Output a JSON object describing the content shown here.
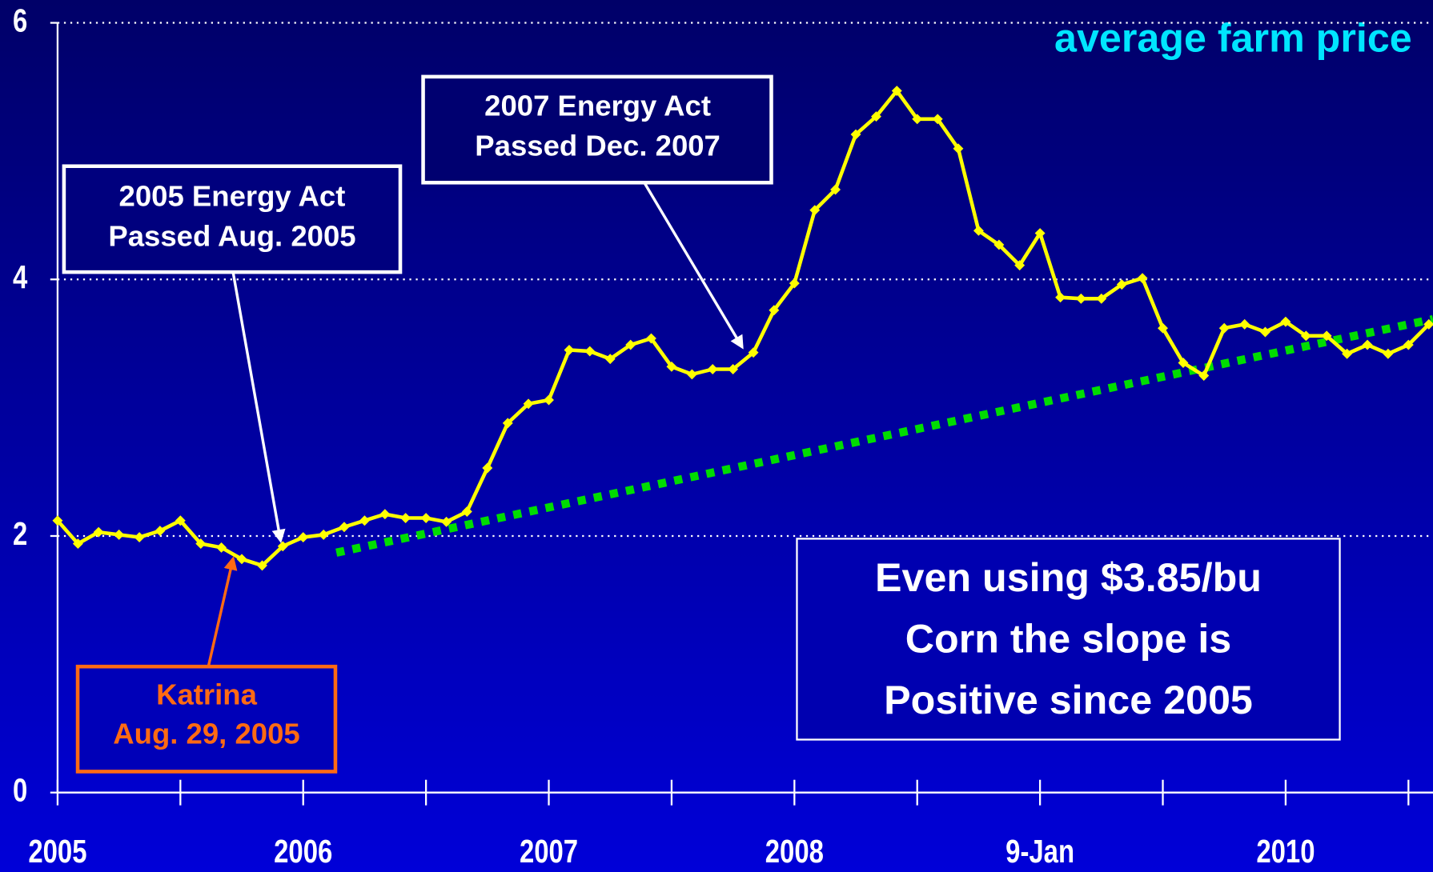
{
  "chart_data": {
    "type": "line",
    "title": "average farm price",
    "x": [
      2005.0,
      2005.083,
      2005.167,
      2005.25,
      2005.333,
      2005.417,
      2005.5,
      2005.583,
      2005.667,
      2005.75,
      2005.833,
      2005.917,
      2006.0,
      2006.083,
      2006.167,
      2006.25,
      2006.333,
      2006.417,
      2006.5,
      2006.583,
      2006.667,
      2006.75,
      2006.833,
      2006.917,
      2007.0,
      2007.083,
      2007.167,
      2007.25,
      2007.333,
      2007.417,
      2007.5,
      2007.583,
      2007.667,
      2007.75,
      2007.833,
      2007.917,
      2008.0,
      2008.083,
      2008.167,
      2008.25,
      2008.333,
      2008.417,
      2008.5,
      2008.583,
      2008.667,
      2008.75,
      2008.833,
      2008.917,
      2009.0,
      2009.083,
      2009.167,
      2009.25,
      2009.333,
      2009.417,
      2009.5,
      2009.583,
      2009.667,
      2009.75,
      2009.833,
      2009.917,
      2010.0,
      2010.083,
      2010.167,
      2010.25,
      2010.333,
      2010.417,
      2010.5,
      2010.583
    ],
    "series": [
      {
        "color": "#ffff00",
        "values": [
          2.12,
          1.94,
          2.03,
          2.01,
          1.99,
          2.04,
          2.12,
          1.94,
          1.91,
          1.82,
          1.77,
          1.92,
          1.99,
          2.01,
          2.07,
          2.12,
          2.17,
          2.14,
          2.14,
          2.11,
          2.19,
          2.53,
          2.88,
          3.03,
          3.06,
          3.45,
          3.44,
          3.38,
          3.49,
          3.54,
          3.32,
          3.26,
          3.3,
          3.3,
          3.43,
          3.76,
          3.97,
          4.54,
          4.7,
          5.13,
          5.27,
          5.47,
          5.25,
          5.25,
          5.02,
          4.38,
          4.27,
          4.11,
          4.36,
          3.86,
          3.85,
          3.85,
          3.96,
          4.01,
          3.62,
          3.35,
          3.25,
          3.62,
          3.65,
          3.59,
          3.67,
          3.56,
          3.56,
          3.42,
          3.49,
          3.42,
          3.49,
          3.65
        ]
      }
    ],
    "trendline": {
      "x": [
        2006.135,
        2010.6
      ],
      "values": [
        1.87,
        3.69
      ],
      "color": "#00dd00"
    },
    "xlim": [
      2005,
      2010.6
    ],
    "xticks": [
      2005,
      2006,
      2007,
      2008,
      {
        "value": 2009,
        "label": "9-Jan"
      },
      2010
    ],
    "xminorticks": [
      2005.5,
      2006.5,
      2007.5,
      2008.5,
      2009.5,
      2010.5
    ],
    "ylim": [
      0,
      6
    ],
    "yticks": [
      0,
      2,
      4,
      6
    ],
    "grid": true,
    "annotations": {
      "energy_act_2005": [
        "2005 Energy Act",
        "Passed Aug. 2005"
      ],
      "energy_act_2007": [
        "2007 Energy Act",
        "Passed Dec. 2007"
      ],
      "katrina": [
        "Katrina",
        "Aug. 29, 2005"
      ],
      "slope_note": [
        "Even using $3.85/bu",
        "Corn the slope is",
        "Positive since 2005"
      ]
    }
  }
}
